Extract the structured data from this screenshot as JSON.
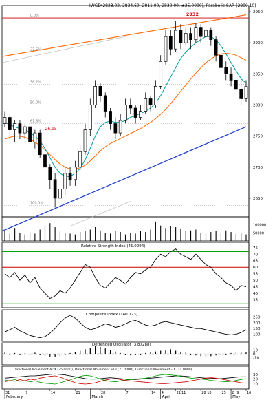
{
  "header": {
    "title": "IWGD(2823.02, 2834.60, 2811.00, 2830.00, ±25.0000), Parabolic SAR (2800.10)",
    "peak_label": "2932"
  },
  "chart_data": {
    "type": "candlestick",
    "price": {
      "ylim": [
        2620,
        2960
      ],
      "right_ticks": [
        2950,
        2900,
        2850,
        2800,
        2750,
        2700,
        2650
      ],
      "fib_lines": [
        {
          "label": "0.0%",
          "value": 2940
        },
        {
          "label": "23.6%",
          "value": 2885
        },
        {
          "label": "38.2%",
          "value": 2833
        },
        {
          "label": "50.0%",
          "value": 2800
        },
        {
          "label": "61.8%",
          "value": 2770
        },
        {
          "label": "100.0%",
          "value": 2638
        }
      ],
      "annotation": {
        "label": "26.15",
        "value": 2755
      },
      "candles": [
        {
          "o": 2770,
          "c": 2780,
          "h": 2790,
          "l": 2765
        },
        {
          "o": 2780,
          "c": 2760,
          "h": 2785,
          "l": 2745
        },
        {
          "o": 2760,
          "c": 2770,
          "h": 2775,
          "l": 2740
        },
        {
          "o": 2770,
          "c": 2755,
          "h": 2775,
          "l": 2745
        },
        {
          "o": 2755,
          "c": 2765,
          "h": 2770,
          "l": 2745
        },
        {
          "o": 2765,
          "c": 2740,
          "h": 2770,
          "l": 2735
        },
        {
          "o": 2740,
          "c": 2755,
          "h": 2760,
          "l": 2730
        },
        {
          "o": 2755,
          "c": 2720,
          "h": 2760,
          "l": 2715
        },
        {
          "o": 2720,
          "c": 2700,
          "h": 2725,
          "l": 2690
        },
        {
          "o": 2700,
          "c": 2680,
          "h": 2705,
          "l": 2665
        },
        {
          "o": 2680,
          "c": 2650,
          "h": 2690,
          "l": 2635
        },
        {
          "o": 2650,
          "c": 2665,
          "h": 2675,
          "l": 2640
        },
        {
          "o": 2665,
          "c": 2690,
          "h": 2700,
          "l": 2655
        },
        {
          "o": 2690,
          "c": 2680,
          "h": 2700,
          "l": 2670
        },
        {
          "o": 2680,
          "c": 2700,
          "h": 2710,
          "l": 2670
        },
        {
          "o": 2700,
          "c": 2725,
          "h": 2735,
          "l": 2695
        },
        {
          "o": 2725,
          "c": 2760,
          "h": 2770,
          "l": 2720
        },
        {
          "o": 2760,
          "c": 2800,
          "h": 2810,
          "l": 2750
        },
        {
          "o": 2800,
          "c": 2830,
          "h": 2840,
          "l": 2795
        },
        {
          "o": 2830,
          "c": 2815,
          "h": 2835,
          "l": 2805
        },
        {
          "o": 2815,
          "c": 2790,
          "h": 2820,
          "l": 2780
        },
        {
          "o": 2790,
          "c": 2770,
          "h": 2795,
          "l": 2760
        },
        {
          "o": 2770,
          "c": 2755,
          "h": 2780,
          "l": 2745
        },
        {
          "o": 2755,
          "c": 2775,
          "h": 2785,
          "l": 2750
        },
        {
          "o": 2775,
          "c": 2800,
          "h": 2810,
          "l": 2770
        },
        {
          "o": 2800,
          "c": 2795,
          "h": 2810,
          "l": 2785
        },
        {
          "o": 2795,
          "c": 2780,
          "h": 2800,
          "l": 2770
        },
        {
          "o": 2780,
          "c": 2790,
          "h": 2800,
          "l": 2775
        },
        {
          "o": 2790,
          "c": 2810,
          "h": 2820,
          "l": 2785
        },
        {
          "o": 2810,
          "c": 2800,
          "h": 2815,
          "l": 2790
        },
        {
          "o": 2800,
          "c": 2830,
          "h": 2840,
          "l": 2795
        },
        {
          "o": 2830,
          "c": 2870,
          "h": 2880,
          "l": 2825
        },
        {
          "o": 2870,
          "c": 2910,
          "h": 2920,
          "l": 2865
        },
        {
          "o": 2910,
          "c": 2890,
          "h": 2920,
          "l": 2880
        },
        {
          "o": 2890,
          "c": 2920,
          "h": 2935,
          "l": 2885
        },
        {
          "o": 2920,
          "c": 2900,
          "h": 2930,
          "l": 2890
        },
        {
          "o": 2900,
          "c": 2915,
          "h": 2925,
          "l": 2895
        },
        {
          "o": 2915,
          "c": 2905,
          "h": 2925,
          "l": 2890
        },
        {
          "o": 2905,
          "c": 2925,
          "h": 2932,
          "l": 2900
        },
        {
          "o": 2925,
          "c": 2910,
          "h": 2930,
          "l": 2900
        },
        {
          "o": 2910,
          "c": 2920,
          "h": 2930,
          "l": 2905
        },
        {
          "o": 2920,
          "c": 2905,
          "h": 2925,
          "l": 2895
        },
        {
          "o": 2905,
          "c": 2880,
          "h": 2910,
          "l": 2870
        },
        {
          "o": 2880,
          "c": 2860,
          "h": 2890,
          "l": 2850
        },
        {
          "o": 2860,
          "c": 2850,
          "h": 2870,
          "l": 2840
        },
        {
          "o": 2850,
          "c": 2840,
          "h": 2860,
          "l": 2830
        },
        {
          "o": 2840,
          "c": 2825,
          "h": 2850,
          "l": 2815
        },
        {
          "o": 2825,
          "c": 2810,
          "h": 2840,
          "l": 2800
        },
        {
          "o": 2810,
          "c": 2830,
          "h": 2840,
          "l": 2805
        }
      ],
      "sma_fast": [
        2772,
        2768,
        2765,
        2762,
        2760,
        2755,
        2750,
        2742,
        2730,
        2715,
        2700,
        2690,
        2685,
        2685,
        2690,
        2698,
        2712,
        2730,
        2750,
        2765,
        2772,
        2774,
        2772,
        2772,
        2775,
        2780,
        2783,
        2786,
        2790,
        2795,
        2803,
        2815,
        2830,
        2845,
        2860,
        2875,
        2885,
        2893,
        2900,
        2905,
        2910,
        2910,
        2905,
        2895,
        2882,
        2868,
        2855,
        2842,
        2835
      ],
      "sma_slow": [
        2745,
        2748,
        2750,
        2750,
        2748,
        2745,
        2740,
        2735,
        2728,
        2720,
        2712,
        2705,
        2700,
        2697,
        2697,
        2699,
        2703,
        2710,
        2718,
        2726,
        2733,
        2738,
        2742,
        2746,
        2750,
        2754,
        2758,
        2762,
        2767,
        2772,
        2778,
        2785,
        2793,
        2802,
        2812,
        2822,
        2832,
        2842,
        2851,
        2860,
        2868,
        2874,
        2879,
        2882,
        2883,
        2882,
        2880,
        2876,
        2872
      ],
      "channel_upper": {
        "from": [
          0,
          2878
        ],
        "to": [
          48,
          2945
        ]
      },
      "channel_lower": {
        "from": [
          0,
          2597
        ],
        "to": [
          48,
          2765
        ]
      }
    },
    "volume": {
      "ylim": [
        0,
        200000
      ],
      "ticks": [
        {
          "label": "100000",
          "value": 100000
        },
        {
          "label": "50000",
          "value": 50000
        }
      ],
      "values": [
        60000,
        45000,
        80000,
        50000,
        40000,
        55000,
        45000,
        70000,
        90000,
        110000,
        85000,
        60000,
        50000,
        45000,
        40000,
        55000,
        60000,
        70000,
        85000,
        65000,
        50000,
        45000,
        60000,
        55000,
        40000,
        50000,
        45000,
        60000,
        55000,
        70000,
        120000,
        95000,
        80000,
        90000,
        85000,
        75000,
        60000,
        65000,
        70000,
        50000,
        45000,
        55000,
        60000,
        50000,
        65000,
        55000,
        45000,
        50000,
        40000
      ]
    },
    "rsi": {
      "title": "Relative Strength Index (45.0294)",
      "ylim": [
        30,
        77
      ],
      "ticks": [
        75,
        70,
        65,
        60,
        55,
        50,
        45,
        40,
        35
      ],
      "levels": [
        72,
        60,
        32
      ],
      "values": [
        55,
        52,
        56,
        50,
        54,
        48,
        52,
        44,
        40,
        36,
        38,
        42,
        40,
        44,
        50,
        56,
        62,
        60,
        52,
        46,
        44,
        48,
        52,
        50,
        47,
        52,
        56,
        55,
        58,
        60,
        66,
        70,
        68,
        72,
        74,
        70,
        68,
        66,
        70,
        66,
        62,
        60,
        55,
        52,
        48,
        46,
        42,
        46,
        45
      ]
    },
    "composite": {
      "title": "Composite Index (140.123)",
      "ylim": [
        50,
        300
      ],
      "ticks": [
        250,
        200,
        150,
        100
      ],
      "values": [
        120,
        140,
        160,
        130,
        110,
        90,
        80,
        70,
        80,
        110,
        150,
        200,
        240,
        265,
        240,
        200,
        160,
        140,
        150,
        170,
        190,
        180,
        160,
        170,
        190,
        210,
        220,
        200,
        180,
        170,
        180,
        200,
        210,
        200,
        190,
        180,
        170,
        160,
        150,
        150,
        140,
        130,
        120,
        110,
        100,
        95,
        100,
        115,
        140
      ]
    },
    "detrended": {
      "title": "Detrended Oscillator (3.87288)",
      "ylim": [
        -25,
        25
      ],
      "ticks": [
        10,
        0,
        -10
      ],
      "values": [
        3,
        -2,
        2,
        -3,
        1,
        -2,
        3,
        -3,
        -5,
        -7,
        -8,
        -6,
        -3,
        2,
        4,
        8,
        12,
        16,
        20,
        18,
        14,
        10,
        6,
        2,
        -2,
        -4,
        -3,
        -2,
        2,
        4,
        6,
        8,
        10,
        12,
        8,
        5,
        3,
        -2,
        -4,
        -6,
        -8,
        -6,
        -4,
        -3,
        -2,
        2,
        3,
        4,
        4
      ]
    },
    "dmi": {
      "title": "Directional Movement ADX (25.0000), Directional Movement +DI (21.0000), Directional Movement -DI (11.0000)",
      "ylim": [
        0,
        45
      ],
      "ticks": [
        30,
        20,
        10
      ],
      "adx": [
        22,
        23,
        24,
        25,
        26,
        27,
        27,
        28,
        29,
        30,
        31,
        30,
        29,
        27,
        25,
        23,
        21,
        20,
        20,
        21,
        22,
        23,
        22,
        21,
        20,
        19,
        19,
        20,
        21,
        22,
        23,
        24,
        25,
        26,
        27,
        27,
        26,
        25,
        24,
        23,
        22,
        22,
        21,
        21,
        22,
        23,
        24,
        25,
        25
      ],
      "plus_di": [
        18,
        16,
        19,
        15,
        17,
        14,
        16,
        13,
        11,
        10,
        9,
        12,
        15,
        18,
        22,
        26,
        28,
        27,
        24,
        20,
        17,
        15,
        14,
        16,
        18,
        19,
        20,
        21,
        22,
        24,
        27,
        29,
        30,
        29,
        28,
        26,
        24,
        22,
        21,
        20,
        19,
        17,
        16,
        15,
        14,
        15,
        17,
        19,
        21
      ],
      "minus_di": [
        14,
        17,
        15,
        19,
        16,
        20,
        18,
        22,
        24,
        26,
        27,
        24,
        20,
        16,
        12,
        10,
        9,
        10,
        12,
        15,
        18,
        20,
        21,
        19,
        17,
        16,
        15,
        14,
        13,
        12,
        11,
        10,
        10,
        11,
        12,
        13,
        14,
        16,
        18,
        20,
        22,
        23,
        22,
        20,
        18,
        16,
        14,
        12,
        11
      ]
    },
    "x_axis": {
      "labels": [
        {
          "text": "31",
          "i": 0
        },
        {
          "text": "7",
          "i": 4
        },
        {
          "text": "14",
          "i": 9
        },
        {
          "text": "21",
          "i": 14
        },
        {
          "text": "28",
          "i": 19
        },
        {
          "text": "7",
          "i": 24
        },
        {
          "text": "14",
          "i": 29
        },
        {
          "text": "21",
          "i": 34
        },
        {
          "text": "28",
          "i": 39
        },
        {
          "text": "4",
          "i": 31
        },
        {
          "text": "11",
          "i": 35
        },
        {
          "text": "18",
          "i": 39
        },
        {
          "text": "25",
          "i": 43
        },
        {
          "text": "2",
          "i": 45
        },
        {
          "text": "9",
          "i": 46
        },
        {
          "text": "16",
          "i": 48
        }
      ],
      "months": [
        {
          "text": "February",
          "i": 0
        },
        {
          "text": "March",
          "i": 17
        },
        {
          "text": "April",
          "i": 31
        },
        {
          "text": "May",
          "i": 45
        }
      ]
    }
  },
  "colors": {
    "candle": "#000000",
    "sma_fast": "#009999",
    "sma_slow": "#ff6600",
    "channel_upper": "#ff6600",
    "channel_lower": "#1f3fcc",
    "rsi_line": "#000000",
    "rsi_green": "#00a000",
    "rsi_red": "#cc0000",
    "adx": "#000000",
    "plus_di": "#00a000",
    "minus_di": "#cc0000",
    "fib": "#999999",
    "peak_label": "#cc0000"
  }
}
